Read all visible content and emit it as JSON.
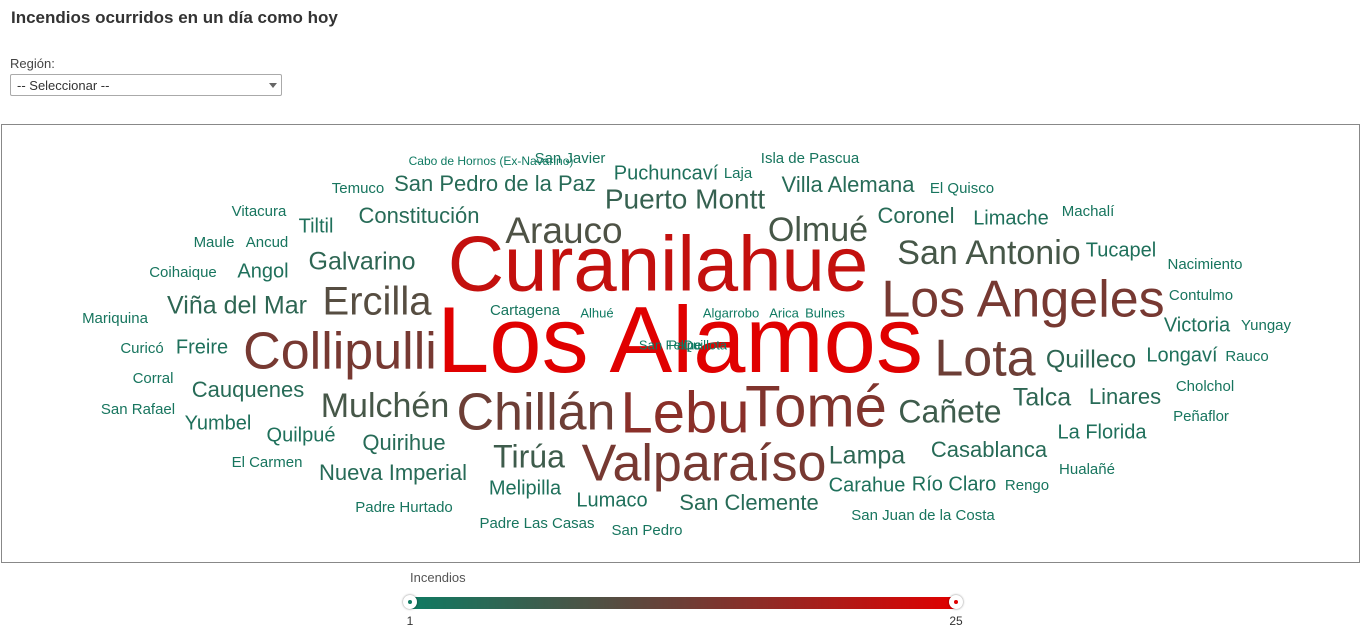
{
  "header": {
    "title": "Incendios ocurridos en un día como hoy"
  },
  "filter": {
    "label": "Región:",
    "selected": "-- Seleccionar --"
  },
  "legend": {
    "title": "Incendios",
    "min": "1",
    "max": "25",
    "min_color": "#0f7a62",
    "mid_color": "#6d3e36",
    "max_color": "#e00000"
  },
  "cloud": {
    "words": [
      {
        "text": "Los Alamos",
        "value": 25
      },
      {
        "text": "Curanilahue",
        "value": 22
      },
      {
        "text": "Lebu",
        "value": 16
      },
      {
        "text": "Tomé",
        "value": 15
      },
      {
        "text": "Collipulli",
        "value": 14
      },
      {
        "text": "Valparaíso",
        "value": 14
      },
      {
        "text": "Los Angeles",
        "value": 14
      },
      {
        "text": "Chillán",
        "value": 13
      },
      {
        "text": "Lota",
        "value": 13
      },
      {
        "text": "Ercilla",
        "value": 10
      },
      {
        "text": "Arauco",
        "value": 9
      },
      {
        "text": "Olmué",
        "value": 8
      },
      {
        "text": "San Antonio",
        "value": 8
      },
      {
        "text": "Mulchén",
        "value": 8
      },
      {
        "text": "Tirúa",
        "value": 7
      },
      {
        "text": "Cañete",
        "value": 7
      },
      {
        "text": "Puerto Montt",
        "value": 6
      },
      {
        "text": "Galvarino",
        "value": 5
      },
      {
        "text": "Viña del Mar",
        "value": 5
      },
      {
        "text": "Lampa",
        "value": 5
      },
      {
        "text": "Quilleco",
        "value": 5
      },
      {
        "text": "Talca",
        "value": 5
      },
      {
        "text": "Constitución",
        "value": 4
      },
      {
        "text": "San Pedro de la Paz",
        "value": 4
      },
      {
        "text": "Villa Alemana",
        "value": 4
      },
      {
        "text": "Coronel",
        "value": 4
      },
      {
        "text": "Cauquenes",
        "value": 4
      },
      {
        "text": "Quirihue",
        "value": 4
      },
      {
        "text": "Nueva Imperial",
        "value": 4
      },
      {
        "text": "Casablanca",
        "value": 4
      },
      {
        "text": "San Clemente",
        "value": 4
      },
      {
        "text": "Linares",
        "value": 4
      },
      {
        "text": "Melipilla",
        "value": 3
      },
      {
        "text": "Quilpué",
        "value": 3
      },
      {
        "text": "Freire",
        "value": 3
      },
      {
        "text": "Puchuncaví",
        "value": 3
      },
      {
        "text": "Tiltil",
        "value": 3
      },
      {
        "text": "Tucapel",
        "value": 3
      },
      {
        "text": "Limache",
        "value": 3
      },
      {
        "text": "Angol",
        "value": 3
      },
      {
        "text": "Lumaco",
        "value": 3
      },
      {
        "text": "Yumbel",
        "value": 3
      },
      {
        "text": "Carahue",
        "value": 3
      },
      {
        "text": "Río Claro",
        "value": 3
      },
      {
        "text": "Victoria",
        "value": 3
      },
      {
        "text": "La Florida",
        "value": 3
      },
      {
        "text": "Longaví",
        "value": 3
      },
      {
        "text": "Vitacura",
        "value": 2
      },
      {
        "text": "Temuco",
        "value": 2
      },
      {
        "text": "Maule",
        "value": 2
      },
      {
        "text": "Ancud",
        "value": 2
      },
      {
        "text": "Coihaique",
        "value": 2
      },
      {
        "text": "Mariquina",
        "value": 2
      },
      {
        "text": "Curicó",
        "value": 2
      },
      {
        "text": "Corral",
        "value": 2
      },
      {
        "text": "San Rafael",
        "value": 2
      },
      {
        "text": "El Carmen",
        "value": 2
      },
      {
        "text": "Padre Hurtado",
        "value": 2
      },
      {
        "text": "Padre Las Casas",
        "value": 2
      },
      {
        "text": "San Pedro",
        "value": 2
      },
      {
        "text": "San Juan de la Costa",
        "value": 2
      },
      {
        "text": "Rengo",
        "value": 2
      },
      {
        "text": "Hualañé",
        "value": 2
      },
      {
        "text": "Peñaflor",
        "value": 2
      },
      {
        "text": "Cholchol",
        "value": 2
      },
      {
        "text": "Rauco",
        "value": 2
      },
      {
        "text": "Yungay",
        "value": 2
      },
      {
        "text": "Contulmo",
        "value": 2
      },
      {
        "text": "Nacimiento",
        "value": 2
      },
      {
        "text": "Machalí",
        "value": 2
      },
      {
        "text": "El Quisco",
        "value": 2
      },
      {
        "text": "Isla de Pascua",
        "value": 2
      },
      {
        "text": "Laja",
        "value": 2
      },
      {
        "text": "San Javier",
        "value": 2
      },
      {
        "text": "Cartagena",
        "value": 2
      },
      {
        "text": "Cabo de Hornos (Ex-Navarino)",
        "value": 1
      },
      {
        "text": "Alhué",
        "value": 1
      },
      {
        "text": "Algarrobo",
        "value": 1
      },
      {
        "text": "Arica",
        "value": 1
      },
      {
        "text": "Bulnes",
        "value": 1
      },
      {
        "text": "San Felipe",
        "value": 1
      },
      {
        "text": "Paine",
        "value": 1
      },
      {
        "text": "Quillota",
        "value": 1
      }
    ]
  }
}
